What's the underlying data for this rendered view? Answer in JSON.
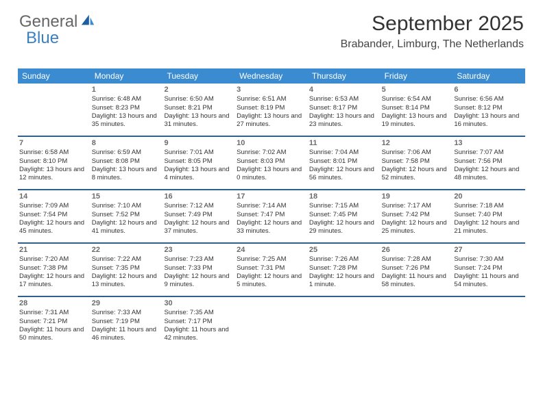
{
  "logo": {
    "general": "General",
    "blue": "Blue"
  },
  "header": {
    "title": "September 2025",
    "subtitle": "Brabander, Limburg, The Netherlands"
  },
  "colors": {
    "header_bg": "#3a8bd0",
    "header_text": "#ffffff",
    "week_border": "#2f5f8f",
    "logo_blue": "#3a7fc0"
  },
  "daynames": [
    "Sunday",
    "Monday",
    "Tuesday",
    "Wednesday",
    "Thursday",
    "Friday",
    "Saturday"
  ],
  "weeks": [
    [
      {
        "n": "",
        "sunrise": "",
        "sunset": "",
        "daylight": ""
      },
      {
        "n": "1",
        "sunrise": "Sunrise: 6:48 AM",
        "sunset": "Sunset: 8:23 PM",
        "daylight": "Daylight: 13 hours and 35 minutes."
      },
      {
        "n": "2",
        "sunrise": "Sunrise: 6:50 AM",
        "sunset": "Sunset: 8:21 PM",
        "daylight": "Daylight: 13 hours and 31 minutes."
      },
      {
        "n": "3",
        "sunrise": "Sunrise: 6:51 AM",
        "sunset": "Sunset: 8:19 PM",
        "daylight": "Daylight: 13 hours and 27 minutes."
      },
      {
        "n": "4",
        "sunrise": "Sunrise: 6:53 AM",
        "sunset": "Sunset: 8:17 PM",
        "daylight": "Daylight: 13 hours and 23 minutes."
      },
      {
        "n": "5",
        "sunrise": "Sunrise: 6:54 AM",
        "sunset": "Sunset: 8:14 PM",
        "daylight": "Daylight: 13 hours and 19 minutes."
      },
      {
        "n": "6",
        "sunrise": "Sunrise: 6:56 AM",
        "sunset": "Sunset: 8:12 PM",
        "daylight": "Daylight: 13 hours and 16 minutes."
      }
    ],
    [
      {
        "n": "7",
        "sunrise": "Sunrise: 6:58 AM",
        "sunset": "Sunset: 8:10 PM",
        "daylight": "Daylight: 13 hours and 12 minutes."
      },
      {
        "n": "8",
        "sunrise": "Sunrise: 6:59 AM",
        "sunset": "Sunset: 8:08 PM",
        "daylight": "Daylight: 13 hours and 8 minutes."
      },
      {
        "n": "9",
        "sunrise": "Sunrise: 7:01 AM",
        "sunset": "Sunset: 8:05 PM",
        "daylight": "Daylight: 13 hours and 4 minutes."
      },
      {
        "n": "10",
        "sunrise": "Sunrise: 7:02 AM",
        "sunset": "Sunset: 8:03 PM",
        "daylight": "Daylight: 13 hours and 0 minutes."
      },
      {
        "n": "11",
        "sunrise": "Sunrise: 7:04 AM",
        "sunset": "Sunset: 8:01 PM",
        "daylight": "Daylight: 12 hours and 56 minutes."
      },
      {
        "n": "12",
        "sunrise": "Sunrise: 7:06 AM",
        "sunset": "Sunset: 7:58 PM",
        "daylight": "Daylight: 12 hours and 52 minutes."
      },
      {
        "n": "13",
        "sunrise": "Sunrise: 7:07 AM",
        "sunset": "Sunset: 7:56 PM",
        "daylight": "Daylight: 12 hours and 48 minutes."
      }
    ],
    [
      {
        "n": "14",
        "sunrise": "Sunrise: 7:09 AM",
        "sunset": "Sunset: 7:54 PM",
        "daylight": "Daylight: 12 hours and 45 minutes."
      },
      {
        "n": "15",
        "sunrise": "Sunrise: 7:10 AM",
        "sunset": "Sunset: 7:52 PM",
        "daylight": "Daylight: 12 hours and 41 minutes."
      },
      {
        "n": "16",
        "sunrise": "Sunrise: 7:12 AM",
        "sunset": "Sunset: 7:49 PM",
        "daylight": "Daylight: 12 hours and 37 minutes."
      },
      {
        "n": "17",
        "sunrise": "Sunrise: 7:14 AM",
        "sunset": "Sunset: 7:47 PM",
        "daylight": "Daylight: 12 hours and 33 minutes."
      },
      {
        "n": "18",
        "sunrise": "Sunrise: 7:15 AM",
        "sunset": "Sunset: 7:45 PM",
        "daylight": "Daylight: 12 hours and 29 minutes."
      },
      {
        "n": "19",
        "sunrise": "Sunrise: 7:17 AM",
        "sunset": "Sunset: 7:42 PM",
        "daylight": "Daylight: 12 hours and 25 minutes."
      },
      {
        "n": "20",
        "sunrise": "Sunrise: 7:18 AM",
        "sunset": "Sunset: 7:40 PM",
        "daylight": "Daylight: 12 hours and 21 minutes."
      }
    ],
    [
      {
        "n": "21",
        "sunrise": "Sunrise: 7:20 AM",
        "sunset": "Sunset: 7:38 PM",
        "daylight": "Daylight: 12 hours and 17 minutes."
      },
      {
        "n": "22",
        "sunrise": "Sunrise: 7:22 AM",
        "sunset": "Sunset: 7:35 PM",
        "daylight": "Daylight: 12 hours and 13 minutes."
      },
      {
        "n": "23",
        "sunrise": "Sunrise: 7:23 AM",
        "sunset": "Sunset: 7:33 PM",
        "daylight": "Daylight: 12 hours and 9 minutes."
      },
      {
        "n": "24",
        "sunrise": "Sunrise: 7:25 AM",
        "sunset": "Sunset: 7:31 PM",
        "daylight": "Daylight: 12 hours and 5 minutes."
      },
      {
        "n": "25",
        "sunrise": "Sunrise: 7:26 AM",
        "sunset": "Sunset: 7:28 PM",
        "daylight": "Daylight: 12 hours and 1 minute."
      },
      {
        "n": "26",
        "sunrise": "Sunrise: 7:28 AM",
        "sunset": "Sunset: 7:26 PM",
        "daylight": "Daylight: 11 hours and 58 minutes."
      },
      {
        "n": "27",
        "sunrise": "Sunrise: 7:30 AM",
        "sunset": "Sunset: 7:24 PM",
        "daylight": "Daylight: 11 hours and 54 minutes."
      }
    ],
    [
      {
        "n": "28",
        "sunrise": "Sunrise: 7:31 AM",
        "sunset": "Sunset: 7:21 PM",
        "daylight": "Daylight: 11 hours and 50 minutes."
      },
      {
        "n": "29",
        "sunrise": "Sunrise: 7:33 AM",
        "sunset": "Sunset: 7:19 PM",
        "daylight": "Daylight: 11 hours and 46 minutes."
      },
      {
        "n": "30",
        "sunrise": "Sunrise: 7:35 AM",
        "sunset": "Sunset: 7:17 PM",
        "daylight": "Daylight: 11 hours and 42 minutes."
      },
      {
        "n": "",
        "sunrise": "",
        "sunset": "",
        "daylight": ""
      },
      {
        "n": "",
        "sunrise": "",
        "sunset": "",
        "daylight": ""
      },
      {
        "n": "",
        "sunrise": "",
        "sunset": "",
        "daylight": ""
      },
      {
        "n": "",
        "sunrise": "",
        "sunset": "",
        "daylight": ""
      }
    ]
  ]
}
